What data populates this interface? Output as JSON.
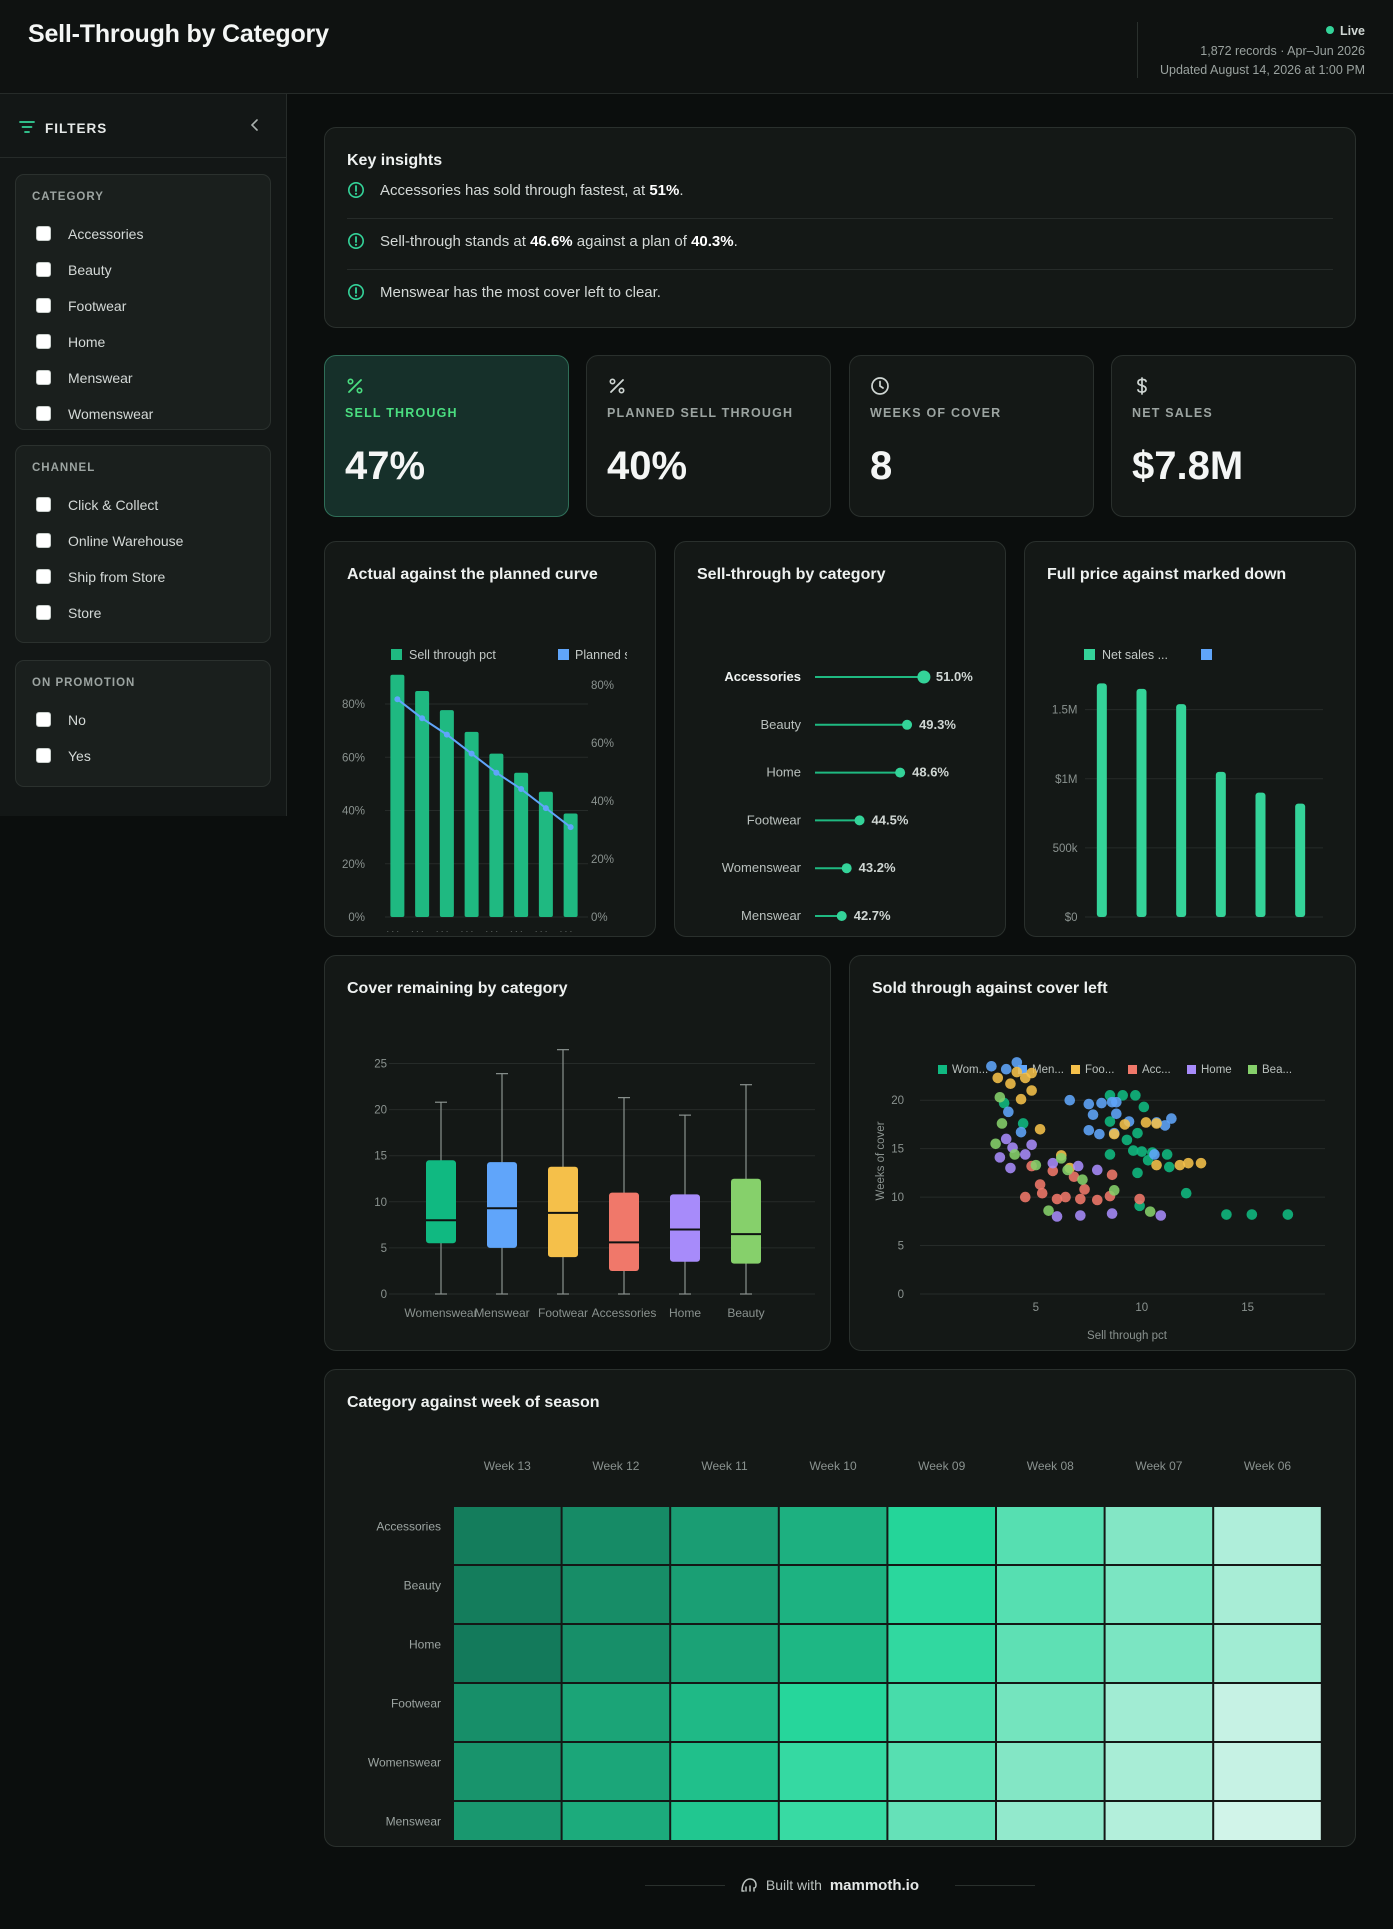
{
  "header": {
    "title": "Sell-Through by Category",
    "status": "Live",
    "records": "1,872 records · Apr–Jun 2026",
    "updated": "Updated August 14, 2026 at 1:00 PM"
  },
  "sidebar": {
    "title": "FILTERS",
    "groups": [
      {
        "label": "CATEGORY",
        "options": [
          "Accessories",
          "Beauty",
          "Footwear",
          "Home",
          "Menswear",
          "Womenswear"
        ]
      },
      {
        "label": "CHANNEL",
        "options": [
          "Click & Collect",
          "Online Warehouse",
          "Ship from Store",
          "Store"
        ]
      },
      {
        "label": "ON PROMOTION",
        "options": [
          "No",
          "Yes"
        ]
      }
    ]
  },
  "insights": {
    "title": "Key insights",
    "items": [
      {
        "pre": "Accessories has sold through fastest, at ",
        "b1": "51%",
        "mid": ".",
        "b2": "",
        "post": ""
      },
      {
        "pre": "Sell-through stands at ",
        "b1": "46.6%",
        "mid": " against a plan of ",
        "b2": "40.3%",
        "post": "."
      },
      {
        "pre": "Menswear has the most cover left to clear.",
        "b1": "",
        "mid": "",
        "b2": "",
        "post": ""
      }
    ]
  },
  "kpis": [
    {
      "icon": "percent-icon",
      "label": "SELL THROUGH",
      "value": "47%"
    },
    {
      "icon": "percent-icon",
      "label": "PLANNED SELL THROUGH",
      "value": "40%"
    },
    {
      "icon": "clock-icon",
      "label": "WEEKS OF COVER",
      "value": "8"
    },
    {
      "icon": "dollar-icon",
      "label": "NET SALES",
      "value": "$7.8M"
    }
  ],
  "colors": {
    "accent": "#34d399",
    "green": "#1fb981",
    "blue": "#60a5fa",
    "category": [
      "#10b981",
      "#60a5fa",
      "#f5c04a",
      "#f0786a",
      "#a78bfa",
      "#86d06b"
    ]
  },
  "chart_data": [
    {
      "type": "bar",
      "title": "Actual against the planned curve",
      "legend": [
        "Sell through pct",
        "Planned s"
      ],
      "categories": [
        "W...",
        "W...",
        "W...",
        "W...",
        "W...",
        "W...",
        "W...",
        "W..."
      ],
      "series": [
        {
          "name": "Sell through pct",
          "values": [
            89,
            83,
            76,
            68,
            60,
            53,
            46,
            38
          ]
        },
        {
          "name": "Planned s",
          "values": [
            80,
            73,
            67,
            60,
            53,
            47,
            40,
            33
          ]
        }
      ],
      "ylim": [
        0,
        90
      ],
      "yticks_left": [
        "0%",
        "20%",
        "40%",
        "60%",
        "80%"
      ],
      "yticks_right": [
        "0%",
        "20%",
        "40%",
        "60%",
        "80%"
      ]
    },
    {
      "type": "lollipop",
      "title": "Sell-through by category",
      "categories": [
        "Accessories",
        "Beauty",
        "Home",
        "Footwear",
        "Womenswear",
        "Menswear"
      ],
      "values": [
        51.0,
        49.3,
        48.6,
        44.5,
        43.2,
        42.7
      ],
      "labels": [
        "51.0%",
        "49.3%",
        "48.6%",
        "44.5%",
        "43.2%",
        "42.7%"
      ],
      "xlim": [
        0,
        51.0
      ]
    },
    {
      "type": "bar",
      "title": "Full price against marked down",
      "legend": [
        "Net sales ...",
        ""
      ],
      "categories": [
        "Wo...",
        "Fo...",
        "Me...",
        "Be...",
        "Ac...",
        "Ho..."
      ],
      "values": [
        1690000,
        1650000,
        1540000,
        1050000,
        900000,
        820000
      ],
      "ylim": [
        0,
        1700000
      ],
      "yticks": [
        "$0",
        "500k",
        "$1M",
        "1.5M"
      ]
    },
    {
      "type": "box",
      "title": "Cover remaining by category",
      "categories": [
        "Womenswear",
        "Menswear",
        "Footwear",
        "Accessories",
        "Home",
        "Beauty"
      ],
      "boxes": [
        {
          "min": 0,
          "q1": 5.5,
          "median": 8,
          "q3": 14.5,
          "max": 20.8
        },
        {
          "min": 0,
          "q1": 5,
          "median": 9.3,
          "q3": 14.3,
          "max": 23.9
        },
        {
          "min": 0,
          "q1": 4,
          "median": 8.8,
          "q3": 13.8,
          "max": 26.5
        },
        {
          "min": 0,
          "q1": 2.5,
          "median": 5.6,
          "q3": 11,
          "max": 21.3
        },
        {
          "min": 0,
          "q1": 3.5,
          "median": 7,
          "q3": 10.8,
          "max": 19.4
        },
        {
          "min": 0,
          "q1": 3.3,
          "median": 6.5,
          "q3": 12.5,
          "max": 22.7
        }
      ],
      "ylim": [
        0,
        27
      ],
      "yticks": [
        "0",
        "5",
        "10",
        "15",
        "20",
        "25"
      ]
    },
    {
      "type": "scatter",
      "title": "Sold through against cover left",
      "legend": [
        "Wom...",
        "Men...",
        "Foo...",
        "Acc...",
        "Home",
        "Bea..."
      ],
      "xlabel": "Sell through pct",
      "ylabel": "Weeks of cover",
      "xlim": [
        0,
        18
      ],
      "ylim": [
        0,
        24
      ],
      "xticks": [
        "5",
        "10",
        "15"
      ],
      "yticks": [
        "0",
        "5",
        "10",
        "15",
        "20"
      ],
      "series": [
        {
          "name": "Wom...",
          "points": [
            [
              9.1,
              20.5
            ],
            [
              9.7,
              20.5
            ],
            [
              8.5,
              20.5
            ],
            [
              10.1,
              19.3
            ],
            [
              8.5,
              17.8
            ],
            [
              9.8,
              16.6
            ],
            [
              9.3,
              15.9
            ],
            [
              10,
              14.7
            ],
            [
              10.5,
              14.6
            ],
            [
              9.6,
              14.8
            ],
            [
              11.2,
              14.4
            ],
            [
              8.5,
              14.4
            ],
            [
              10.3,
              13.8
            ],
            [
              11.3,
              13.1
            ],
            [
              9.8,
              12.5
            ],
            [
              12.1,
              10.4
            ],
            [
              14,
              8.2
            ],
            [
              15.2,
              8.2
            ],
            [
              16.9,
              8.2
            ],
            [
              9.9,
              9.1
            ],
            [
              3.5,
              19.7
            ],
            [
              4.4,
              17.6
            ]
          ]
        },
        {
          "name": "Men...",
          "points": [
            [
              2.9,
              23.5
            ],
            [
              3.6,
              23.2
            ],
            [
              4.1,
              23.9
            ],
            [
              8.8,
              19.8
            ],
            [
              6.6,
              20
            ],
            [
              7.5,
              19.6
            ],
            [
              8.1,
              19.7
            ],
            [
              8.6,
              19.8
            ],
            [
              7.7,
              18.5
            ],
            [
              8.8,
              18.6
            ],
            [
              10.7,
              17.7
            ],
            [
              11.1,
              17.4
            ],
            [
              11.4,
              18.1
            ],
            [
              7.5,
              16.9
            ],
            [
              8,
              16.5
            ],
            [
              8.7,
              16.6
            ],
            [
              9.4,
              17.8
            ],
            [
              10.6,
              14.4
            ],
            [
              3.7,
              18.8
            ],
            [
              4.3,
              16.7
            ]
          ]
        },
        {
          "name": "Foo...",
          "points": [
            [
              3.2,
              22.3
            ],
            [
              4.1,
              22.9
            ],
            [
              4.5,
              22.3
            ],
            [
              4.8,
              22.8
            ],
            [
              3.8,
              21.7
            ],
            [
              4.3,
              20.1
            ],
            [
              4.8,
              21
            ],
            [
              10.7,
              17.6
            ],
            [
              10.2,
              17.7
            ],
            [
              9.2,
              17.5
            ],
            [
              8.7,
              16.5
            ],
            [
              12.2,
              13.5
            ],
            [
              12.8,
              13.5
            ],
            [
              11.8,
              13.3
            ],
            [
              10.7,
              13.3
            ],
            [
              6.6,
              13
            ],
            [
              5.2,
              17
            ],
            [
              6.2,
              14.3
            ]
          ]
        },
        {
          "name": "Acc...",
          "points": [
            [
              5.8,
              12.7
            ],
            [
              6.8,
              12.1
            ],
            [
              7.3,
              10.8
            ],
            [
              8.5,
              10.1
            ],
            [
              9.9,
              9.8
            ],
            [
              5.3,
              10.4
            ],
            [
              6.4,
              10
            ],
            [
              7.9,
              9.7
            ],
            [
              5.2,
              11.3
            ],
            [
              7.1,
              9.8
            ],
            [
              4.8,
              13.2
            ],
            [
              8.6,
              12.3
            ],
            [
              6,
              9.8
            ],
            [
              4.5,
              10
            ]
          ]
        },
        {
          "name": "Home",
          "points": [
            [
              7.1,
              8.1
            ],
            [
              8.6,
              8.3
            ],
            [
              10.9,
              8.1
            ],
            [
              3.6,
              16
            ],
            [
              3.9,
              15.1
            ],
            [
              4.8,
              15.4
            ],
            [
              4.5,
              14.4
            ],
            [
              5.8,
              13.5
            ],
            [
              7,
              13.2
            ],
            [
              7.9,
              12.8
            ],
            [
              3.3,
              14.1
            ],
            [
              3.8,
              13
            ],
            [
              6,
              8
            ]
          ]
        },
        {
          "name": "Bea...",
          "points": [
            [
              3.3,
              20.3
            ],
            [
              3.4,
              17.6
            ],
            [
              4,
              14.4
            ],
            [
              5,
              13.3
            ],
            [
              6.5,
              12.8
            ],
            [
              7.2,
              11.8
            ],
            [
              8.7,
              10.7
            ],
            [
              5.6,
              8.6
            ],
            [
              10.4,
              8.5
            ],
            [
              3.1,
              15.5
            ],
            [
              6.2,
              14
            ]
          ]
        }
      ]
    },
    {
      "type": "heatmap",
      "title": "Category against week of season",
      "x": [
        "Week 13",
        "Week 12",
        "Week 11",
        "Week 10",
        "Week 09",
        "Week 08",
        "Week 07",
        "Week 06"
      ],
      "y": [
        "Accessories",
        "Beauty",
        "Home",
        "Footwear",
        "Womenswear",
        "Menswear"
      ],
      "values": [
        [
          88,
          82,
          74,
          66,
          50,
          36,
          24,
          12
        ],
        [
          88,
          81,
          73,
          65,
          48,
          36,
          26,
          14
        ],
        [
          89,
          80,
          72,
          63,
          46,
          34,
          26,
          16
        ],
        [
          80,
          71,
          62,
          49,
          40,
          28,
          16,
          6
        ],
        [
          78,
          70,
          59,
          45,
          36,
          24,
          14,
          6
        ],
        [
          76,
          68,
          56,
          44,
          32,
          20,
          11,
          3
        ]
      ],
      "vrange": [
        0,
        90
      ]
    }
  ],
  "footer": {
    "prefix": "Built with",
    "brand": "mammoth.io"
  }
}
